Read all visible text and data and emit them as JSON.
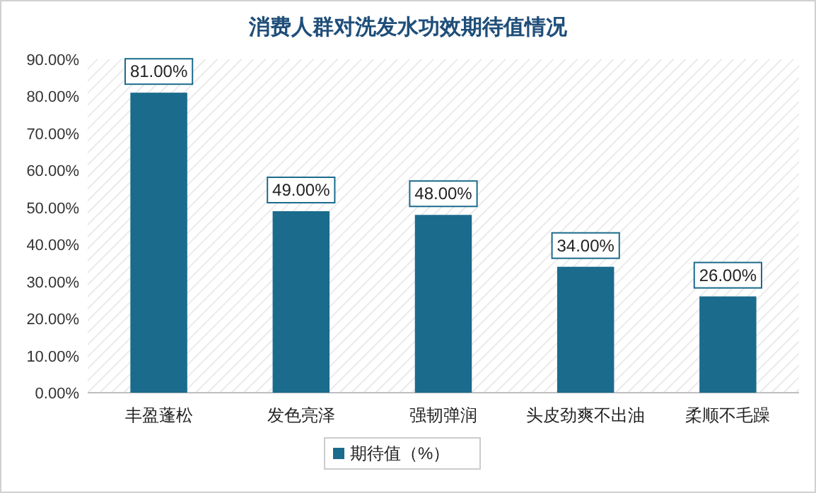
{
  "chart_data": {
    "type": "bar",
    "title": "消费人群对洗发水功效期待值情况",
    "categories": [
      "丰盈蓬松",
      "发色亮泽",
      "强韧弹润",
      "头皮劲爽不出油",
      "柔顺不毛躁"
    ],
    "series": [
      {
        "name": "期待值（%）",
        "color": "#1b6b8c",
        "values": [
          81,
          49,
          48,
          34,
          26
        ],
        "value_labels": [
          "81.00%",
          "49.00%",
          "48.00%",
          "34.00%",
          "26.00%"
        ]
      }
    ],
    "ylim": [
      0,
      90
    ],
    "yticks": [
      {
        "value": 0,
        "label": "0.00%"
      },
      {
        "value": 10,
        "label": "10.00%"
      },
      {
        "value": 20,
        "label": "20.00%"
      },
      {
        "value": 30,
        "label": "30.00%"
      },
      {
        "value": 40,
        "label": "40.00%"
      },
      {
        "value": 50,
        "label": "50.00%"
      },
      {
        "value": 60,
        "label": "60.00%"
      },
      {
        "value": 70,
        "label": "70.00%"
      },
      {
        "value": 80,
        "label": "80.00%"
      },
      {
        "value": 90,
        "label": "90.00%"
      }
    ],
    "legend": "bottom"
  }
}
